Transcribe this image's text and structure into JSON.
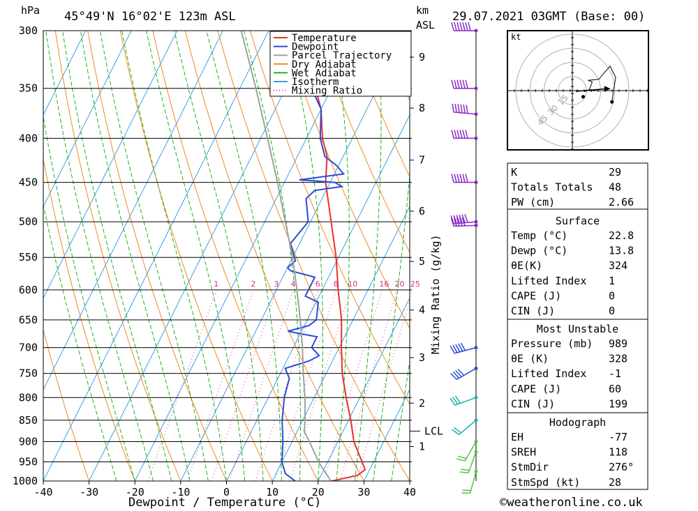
{
  "header": {
    "location": "45°49'N 16°02'E 123m ASL",
    "valid": "29.07.2021 03GMT (Base: 00)",
    "units_p": "hPa",
    "units_km": "km",
    "units_asl": "ASL"
  },
  "footer": {
    "copyright": "©weatheronline.co.uk"
  },
  "chart_data": [
    {
      "type": "line",
      "subtype": "skew-T log-p sounding",
      "xlabel": "Dewpoint / Temperature (°C)",
      "ylabel": "hPa",
      "xlim": [
        -40,
        40
      ],
      "ylim": [
        1000,
        300
      ],
      "y_scale": "log",
      "x_ticks": [
        -40,
        -30,
        -20,
        -10,
        0,
        10,
        20,
        30,
        40
      ],
      "pressure_levels": [
        300,
        350,
        400,
        450,
        500,
        550,
        600,
        650,
        700,
        750,
        800,
        850,
        900,
        950,
        1000
      ],
      "height_km_ticks": [
        {
          "km": "9",
          "p": 322
        },
        {
          "km": "8",
          "p": 369
        },
        {
          "km": "7",
          "p": 424
        },
        {
          "km": "6",
          "p": 486
        },
        {
          "km": "5",
          "p": 556
        },
        {
          "km": "4",
          "p": 633
        },
        {
          "km": "3",
          "p": 719
        },
        {
          "km": "2",
          "p": 812
        },
        {
          "km": "1",
          "p": 912
        }
      ],
      "lcl": {
        "label": "LCL",
        "p": 875
      },
      "mixing_ratio_axis_label": "Mixing Ratio (g/kg)",
      "mixing_ratio_labels": [
        "1",
        "2",
        "3",
        "4",
        "6",
        "8",
        "10",
        "16",
        "20",
        "25"
      ],
      "legend": {
        "placement": "top-right",
        "items": [
          {
            "name": "Temperature",
            "color": "#e8302a",
            "style": "solid"
          },
          {
            "name": "Dewpoint",
            "color": "#2a4bd7",
            "style": "solid"
          },
          {
            "name": "Parcel Trajectory",
            "color": "#a0a0a0",
            "style": "solid"
          },
          {
            "name": "Dry Adiabat",
            "color": "#f08a20",
            "style": "solid"
          },
          {
            "name": "Wet Adiabat",
            "color": "#22b022",
            "style": "solid"
          },
          {
            "name": "Isotherm",
            "color": "#3aa0e8",
            "style": "solid"
          },
          {
            "name": "Mixing Ratio",
            "color": "#d0308a",
            "style": "dotted"
          }
        ]
      },
      "series": [
        {
          "name": "Temperature",
          "points": [
            [
              1000,
              23.0
            ],
            [
              985,
              28.0
            ],
            [
              970,
              29.0
            ],
            [
              950,
              27.5
            ],
            [
              900,
              23.5
            ],
            [
              850,
              20.5
            ],
            [
              800,
              17.0
            ],
            [
              750,
              13.5
            ],
            [
              700,
              10.5
            ],
            [
              650,
              7.5
            ],
            [
              600,
              3.5
            ],
            [
              550,
              -0.5
            ],
            [
              500,
              -5.5
            ],
            [
              450,
              -11.0
            ],
            [
              420,
              -13.5
            ],
            [
              400,
              -16.5
            ],
            [
              370,
              -20.0
            ],
            [
              350,
              -23.5
            ],
            [
              320,
              -28.0
            ],
            [
              300,
              -31.0
            ]
          ]
        },
        {
          "name": "Dewpoint",
          "points": [
            [
              1000,
              15.0
            ],
            [
              980,
              12.0
            ],
            [
              950,
              10.0
            ],
            [
              900,
              8.0
            ],
            [
              850,
              5.5
            ],
            [
              800,
              3.5
            ],
            [
              760,
              2.5
            ],
            [
              740,
              0.5
            ],
            [
              725,
              5.0
            ],
            [
              715,
              6.5
            ],
            [
              700,
              4.0
            ],
            [
              680,
              4.0
            ],
            [
              670,
              -3.0
            ],
            [
              660,
              1.0
            ],
            [
              650,
              2.0
            ],
            [
              620,
              0.5
            ],
            [
              610,
              -3.0
            ],
            [
              580,
              -3.0
            ],
            [
              570,
              -9.0
            ],
            [
              565,
              -10.0
            ],
            [
              555,
              -9.0
            ],
            [
              530,
              -12.0
            ],
            [
              500,
              -10.5
            ],
            [
              470,
              -13.5
            ],
            [
              460,
              -12.5
            ],
            [
              455,
              -7.0
            ],
            [
              450,
              -9.0
            ],
            [
              447,
              -17.0
            ],
            [
              440,
              -8.0
            ],
            [
              430,
              -10.5
            ],
            [
              420,
              -14.0
            ],
            [
              400,
              -17.0
            ],
            [
              370,
              -20.0
            ],
            [
              345,
              -25.5
            ],
            [
              320,
              -29.0
            ],
            [
              310,
              -34.0
            ],
            [
              300,
              -39.0
            ]
          ]
        },
        {
          "name": "Parcel Trajectory",
          "points": [
            [
              1000,
              22.8
            ],
            [
              950,
              18.0
            ],
            [
              900,
              13.8
            ],
            [
              875,
              11.5
            ],
            [
              850,
              10.5
            ],
            [
              800,
              8.0
            ],
            [
              750,
              5.0
            ],
            [
              700,
              2.0
            ],
            [
              650,
              -1.5
            ],
            [
              600,
              -5.5
            ],
            [
              550,
              -10.0
            ],
            [
              500,
              -15.5
            ],
            [
              450,
              -21.5
            ],
            [
              400,
              -28.5
            ],
            [
              350,
              -36.5
            ],
            [
              300,
              -46.0
            ]
          ]
        }
      ],
      "wind_barbs": [
        {
          "p": 300,
          "dir": 270,
          "speed_kt": 65
        },
        {
          "p": 350,
          "dir": 270,
          "speed_kt": 55
        },
        {
          "p": 375,
          "dir": 275,
          "speed_kt": 60
        },
        {
          "p": 400,
          "dir": 270,
          "speed_kt": 60
        },
        {
          "p": 450,
          "dir": 270,
          "speed_kt": 60
        },
        {
          "p": 500,
          "dir": 265,
          "speed_kt": 55
        },
        {
          "p": 505,
          "dir": 268,
          "speed_kt": 50
        },
        {
          "p": 700,
          "dir": 255,
          "speed_kt": 50
        },
        {
          "p": 740,
          "dir": 240,
          "speed_kt": 40
        },
        {
          "p": 800,
          "dir": 250,
          "speed_kt": 25
        },
        {
          "p": 850,
          "dir": 230,
          "speed_kt": 20
        },
        {
          "p": 900,
          "dir": 210,
          "speed_kt": 15
        },
        {
          "p": 925,
          "dir": 200,
          "speed_kt": 20
        },
        {
          "p": 975,
          "dir": 195,
          "speed_kt": 15
        }
      ]
    },
    {
      "type": "line",
      "subtype": "hodograph",
      "unit_label": "kt",
      "ring_labels": [
        "15",
        "30",
        "45"
      ],
      "ring_values": [
        15,
        30,
        45,
        60
      ],
      "trace_uv": [
        [
          13,
          -1
        ],
        [
          18,
          1
        ],
        [
          21,
          9
        ],
        [
          17,
          11
        ],
        [
          28,
          12
        ],
        [
          33,
          18
        ],
        [
          40,
          26
        ],
        [
          46,
          14
        ],
        [
          44,
          2
        ],
        [
          42,
          -12
        ]
      ],
      "storm_motion_uv": [
        27.8,
        2.0
      ],
      "storm_marker_uv": [
        5,
        -5
      ]
    }
  ],
  "indices": {
    "general": [
      {
        "label": "K",
        "value": "29"
      },
      {
        "label": "Totals Totals",
        "value": "48"
      },
      {
        "label": "PW (cm)",
        "value": "2.66"
      }
    ],
    "surface": {
      "title": "Surface",
      "rows": [
        {
          "label": "Temp (°C)",
          "value": "22.8"
        },
        {
          "label": "Dewp (°C)",
          "value": "13.8"
        },
        {
          "label": "θE(K)",
          "value": "324"
        },
        {
          "label": "Lifted Index",
          "value": "1"
        },
        {
          "label": "CAPE (J)",
          "value": "0"
        },
        {
          "label": "CIN (J)",
          "value": "0"
        }
      ]
    },
    "most_unstable": {
      "title": "Most Unstable",
      "rows": [
        {
          "label": "Pressure (mb)",
          "value": "989"
        },
        {
          "label": "θE (K)",
          "value": "328"
        },
        {
          "label": "Lifted Index",
          "value": "-1"
        },
        {
          "label": "CAPE (J)",
          "value": "60"
        },
        {
          "label": "CIN (J)",
          "value": "199"
        }
      ]
    },
    "hodograph": {
      "title": "Hodograph",
      "rows": [
        {
          "label": "EH",
          "value": "-77"
        },
        {
          "label": "SREH",
          "value": "118"
        },
        {
          "label": "StmDir",
          "value": "276°"
        },
        {
          "label": "StmSpd (kt)",
          "value": "28"
        }
      ]
    }
  }
}
